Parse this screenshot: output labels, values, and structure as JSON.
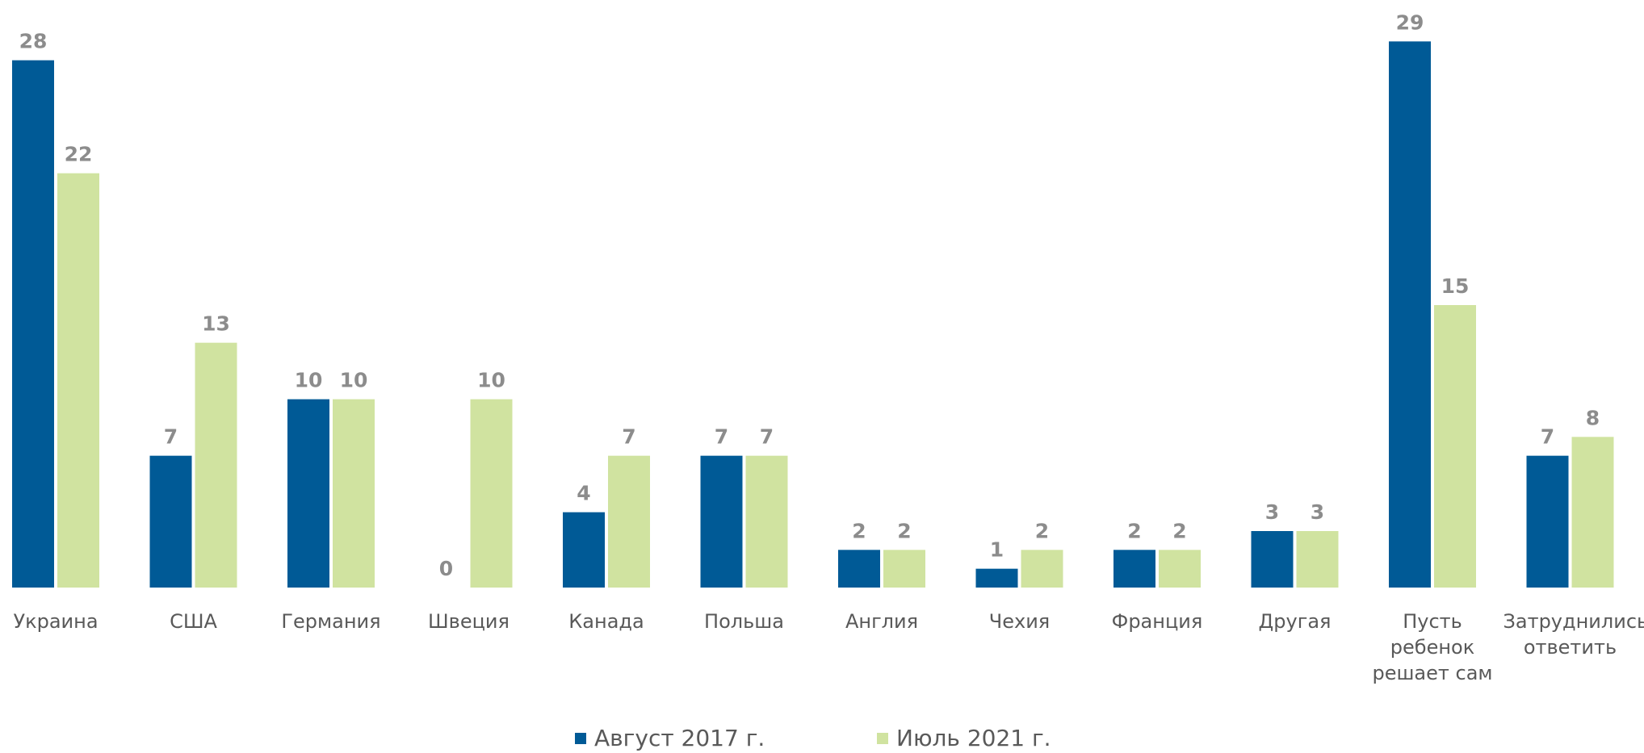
{
  "chart_data": {
    "type": "bar",
    "categories": [
      "Украина",
      "США",
      "Германия",
      "Швеция",
      "Канада",
      "Польша",
      "Англия",
      "Чехия",
      "Франция",
      "Другая",
      "Пусть ребенок решает сам",
      "Затруднились ответить"
    ],
    "series": [
      {
        "name": "Август 2017 г.",
        "color": "#005a96",
        "values": [
          28,
          7,
          10,
          0,
          4,
          7,
          2,
          1,
          2,
          3,
          29,
          7
        ]
      },
      {
        "name": "Июль 2021 г.",
        "color": "#d0e3a0",
        "values": [
          22,
          13,
          10,
          10,
          7,
          7,
          2,
          2,
          2,
          3,
          15,
          8
        ]
      }
    ],
    "ylim": [
      0,
      30
    ]
  }
}
